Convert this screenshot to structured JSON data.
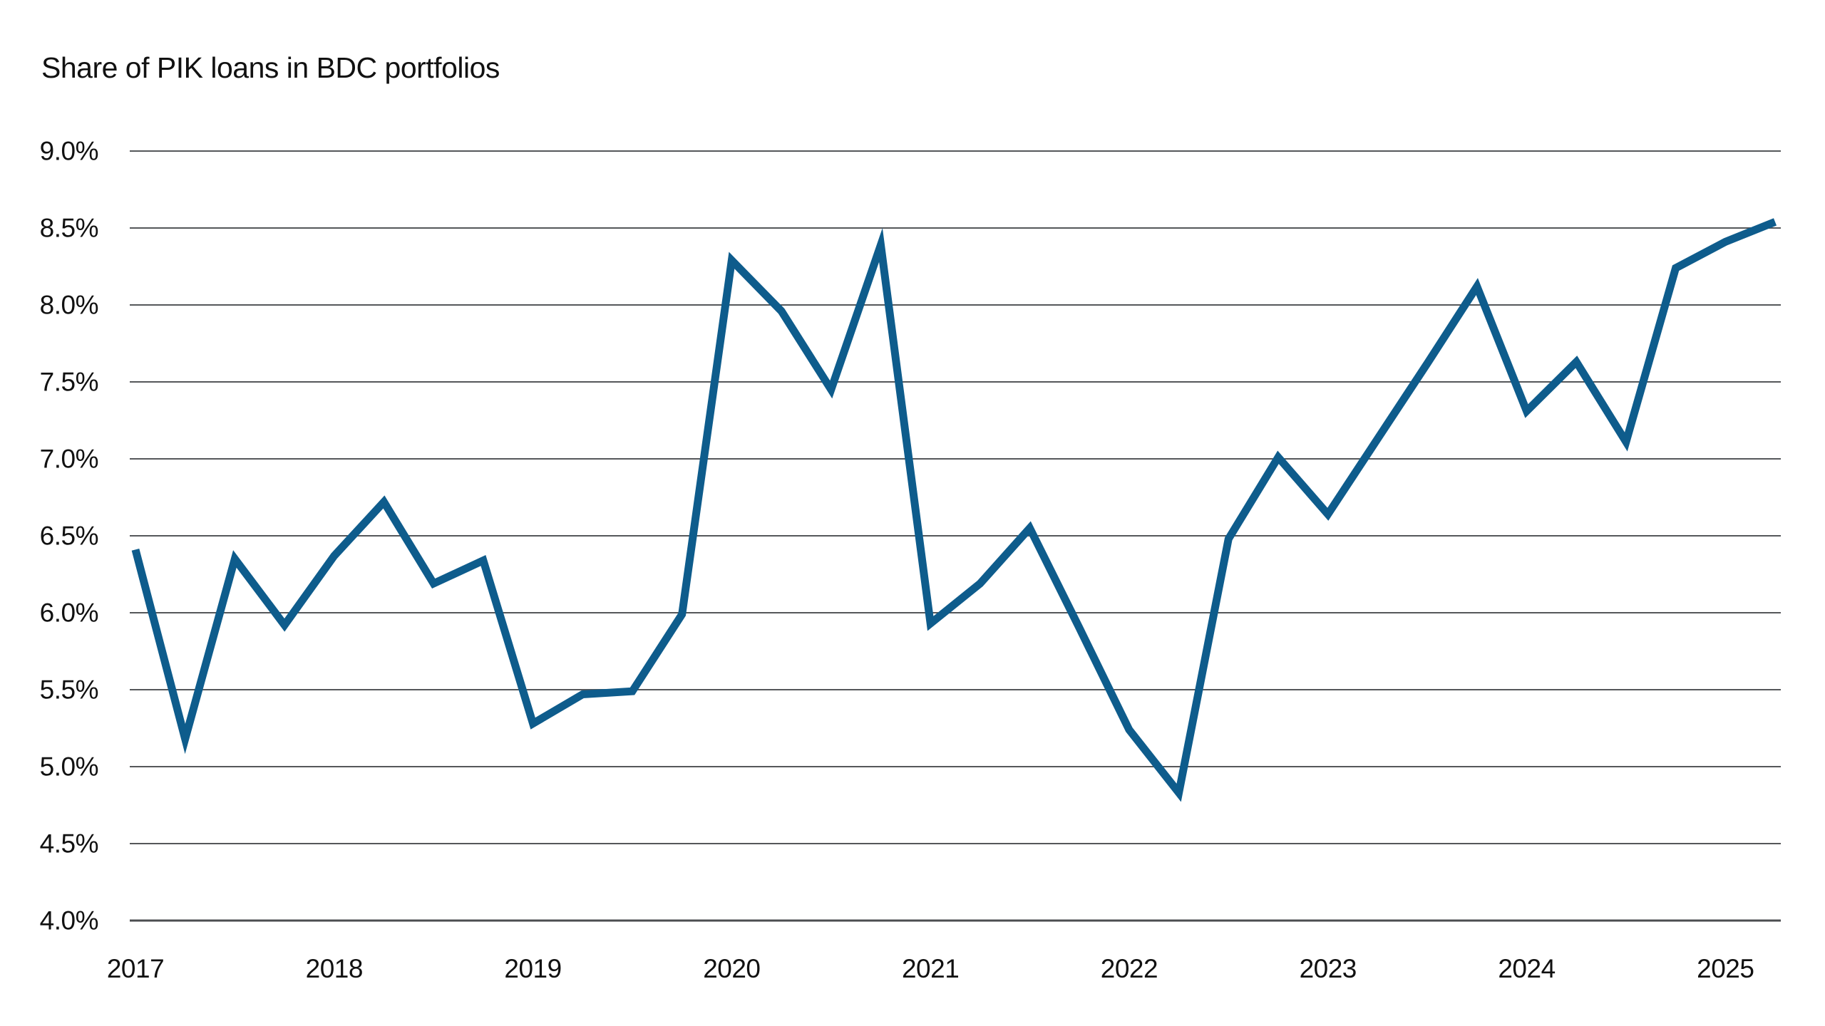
{
  "title": "Share of PIK loans in BDC portfolios",
  "chart_data": {
    "type": "line",
    "title": "Share of PIK loans in BDC portfolios",
    "xlabel": "",
    "ylabel": "",
    "ylim": [
      4.0,
      9.0
    ],
    "y_step": 0.5,
    "y_tick_labels": [
      "9.0%",
      "8.5%",
      "8.0%",
      "7.5%",
      "7.0%",
      "6.5%",
      "6.0%",
      "5.5%",
      "5.0%",
      "4.5%",
      "4.0%"
    ],
    "x_tick_labels": [
      "2017",
      "2018",
      "2019",
      "2020",
      "2021",
      "2022",
      "2023",
      "2024",
      "2025"
    ],
    "grid": "horizontal",
    "legend_position": "none",
    "background": "#ffffff",
    "grid_color": "#55575a",
    "text_color": "#111111",
    "series": [
      {
        "name": "Share of PIK loans in BDC portfolios",
        "color": "#0e5c8c",
        "stroke_width": 11,
        "x": [
          "2017 Q1",
          "2017 Q2",
          "2017 Q3",
          "2017 Q4",
          "2018 Q1",
          "2018 Q2",
          "2018 Q3",
          "2018 Q4",
          "2019 Q1",
          "2019 Q2",
          "2019 Q3",
          "2019 Q4",
          "2020 Q1",
          "2020 Q2",
          "2020 Q3",
          "2020 Q4",
          "2021 Q1",
          "2021 Q2",
          "2021 Q3",
          "2021 Q4",
          "2022 Q1",
          "2022 Q2",
          "2022 Q3",
          "2022 Q4",
          "2023 Q1",
          "2023 Q2",
          "2023 Q3",
          "2023 Q4",
          "2024 Q1",
          "2024 Q2",
          "2024 Q3",
          "2024 Q4",
          "2025 Q1",
          "2025 Q2"
        ],
        "values": [
          6.41,
          5.18,
          6.35,
          5.92,
          6.37,
          6.72,
          6.19,
          6.34,
          5.28,
          5.47,
          5.49,
          5.99,
          8.29,
          7.96,
          7.45,
          8.39,
          5.93,
          6.19,
          6.55,
          5.9,
          5.24,
          4.83,
          6.48,
          7.01,
          6.64,
          7.13,
          7.62,
          8.12,
          7.31,
          7.63,
          7.11,
          8.24,
          8.41,
          8.54
        ]
      }
    ]
  }
}
